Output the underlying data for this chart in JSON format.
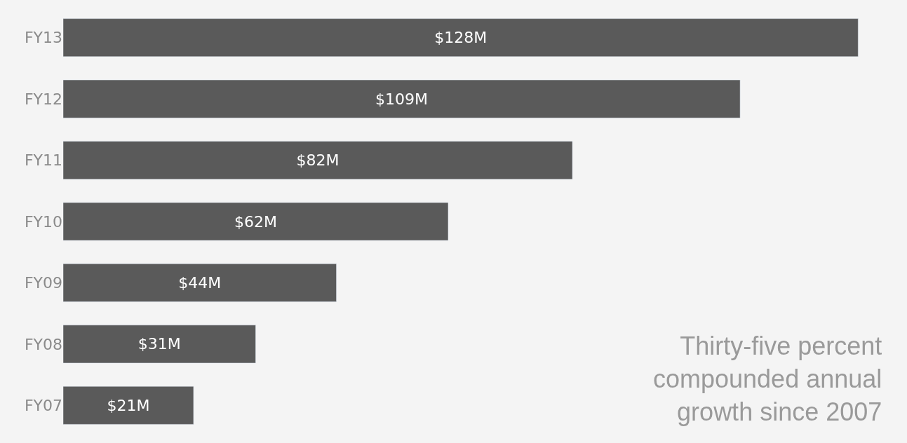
{
  "chart_data": {
    "type": "bar",
    "orientation": "horizontal",
    "categories": [
      "FY13",
      "FY12",
      "FY11",
      "FY10",
      "FY09",
      "FY08",
      "FY07"
    ],
    "values": [
      128,
      109,
      82,
      62,
      44,
      31,
      21
    ],
    "value_labels": [
      "$128M",
      "$109M",
      "$82M",
      "$62M",
      "$44M",
      "$31M",
      "$21M"
    ],
    "color": "#5a5a5a",
    "annotations": [
      "Thirty-five percent compounded annual growth since 2007"
    ]
  }
}
